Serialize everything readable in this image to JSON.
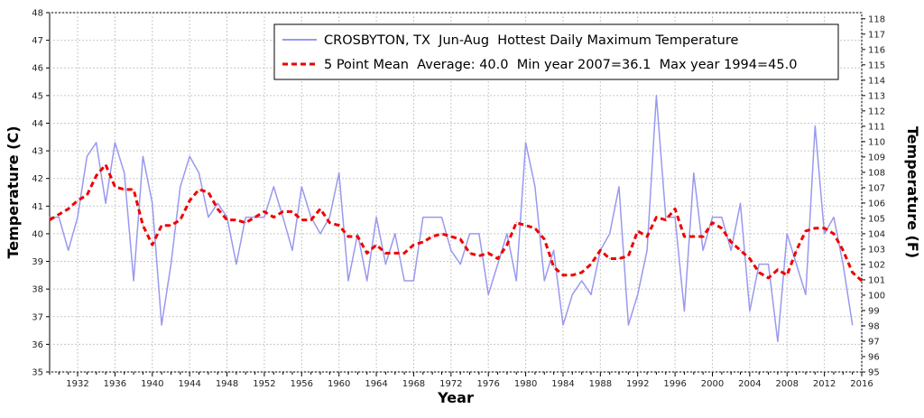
{
  "chart_data": {
    "type": "line",
    "title": "",
    "xlabel": "Year",
    "ylabel_left": "Temperature (C)",
    "ylabel_right": "Temperature (F)",
    "xlim": [
      1929,
      2016
    ],
    "ylim": [
      35,
      48
    ],
    "ylim_f": [
      95,
      118.4
    ],
    "grid": true,
    "legend_position": "top-right",
    "x_ticks": [
      1932,
      1936,
      1940,
      1944,
      1948,
      1952,
      1956,
      1960,
      1964,
      1968,
      1972,
      1976,
      1980,
      1984,
      1988,
      1992,
      1996,
      2000,
      2004,
      2008,
      2012,
      2016
    ],
    "y_ticks": [
      35,
      36,
      37,
      38,
      39,
      40,
      41,
      42,
      43,
      44,
      45,
      46,
      47,
      48
    ],
    "y_ticks_f": [
      95,
      96,
      97,
      98,
      99,
      100,
      101,
      102,
      103,
      104,
      105,
      106,
      107,
      108,
      109,
      110,
      111,
      112,
      113,
      114,
      115,
      116,
      117,
      118
    ],
    "series": [
      {
        "name": "CROSBYTON, TX  Jun-Aug  Hottest Daily Maximum Temperature",
        "color": "#9999ee",
        "style": "solid",
        "x": [
          1929,
          1930,
          1931,
          1932,
          1933,
          1934,
          1935,
          1936,
          1937,
          1938,
          1939,
          1940,
          1941,
          1942,
          1943,
          1944,
          1945,
          1946,
          1947,
          1948,
          1949,
          1950,
          1951,
          1952,
          1953,
          1954,
          1955,
          1956,
          1957,
          1958,
          1959,
          1960,
          1961,
          1962,
          1963,
          1964,
          1965,
          1966,
          1967,
          1968,
          1969,
          1970,
          1971,
          1972,
          1973,
          1974,
          1975,
          1976,
          1977,
          1978,
          1979,
          1980,
          1981,
          1982,
          1983,
          1984,
          1985,
          1986,
          1987,
          1988,
          1989,
          1990,
          1991,
          1992,
          1993,
          1994,
          1995,
          1996,
          1997,
          1998,
          1999,
          2000,
          2001,
          2002,
          2003,
          2004,
          2005,
          2006,
          2007,
          2008,
          2009,
          2010,
          2011,
          2012,
          2013,
          2014,
          2015
        ],
        "values": [
          40.6,
          40.6,
          39.4,
          40.6,
          42.8,
          43.3,
          41.1,
          43.3,
          42.2,
          38.3,
          42.8,
          41.1,
          36.7,
          38.9,
          41.7,
          42.8,
          42.2,
          40.6,
          41.1,
          40.6,
          38.9,
          40.6,
          40.6,
          40.6,
          41.7,
          40.6,
          39.4,
          41.7,
          40.6,
          40.0,
          40.6,
          42.2,
          38.3,
          40.0,
          38.3,
          40.6,
          38.9,
          40.0,
          38.3,
          38.3,
          40.6,
          40.6,
          40.6,
          39.4,
          38.9,
          40.0,
          40.0,
          37.8,
          38.9,
          40.0,
          38.3,
          43.3,
          41.7,
          38.3,
          39.4,
          36.7,
          37.8,
          38.3,
          37.8,
          39.4,
          40.0,
          41.7,
          36.7,
          37.8,
          39.4,
          45.0,
          40.6,
          40.6,
          37.2,
          42.2,
          39.4,
          40.6,
          40.6,
          39.4,
          41.1,
          37.2,
          38.9,
          38.9,
          36.1,
          40.0,
          38.9,
          37.8,
          43.9,
          40.0,
          40.6,
          38.9,
          36.7
        ]
      },
      {
        "name": "5 Point Mean  Average: 40.0  Min year 2007=36.1  Max year 1994=45.0",
        "color": "#ee0000",
        "style": "dashed",
        "x": [
          1929,
          1930,
          1931,
          1932,
          1933,
          1934,
          1935,
          1936,
          1937,
          1938,
          1939,
          1940,
          1941,
          1942,
          1943,
          1944,
          1945,
          1946,
          1947,
          1948,
          1949,
          1950,
          1951,
          1952,
          1953,
          1954,
          1955,
          1956,
          1957,
          1958,
          1959,
          1960,
          1961,
          1962,
          1963,
          1964,
          1965,
          1966,
          1967,
          1968,
          1969,
          1970,
          1971,
          1972,
          1973,
          1974,
          1975,
          1976,
          1977,
          1978,
          1979,
          1980,
          1981,
          1982,
          1983,
          1984,
          1985,
          1986,
          1987,
          1988,
          1989,
          1990,
          1991,
          1992,
          1993,
          1994,
          1995,
          1996,
          1997,
          1998,
          1999,
          2000,
          2001,
          2002,
          2003,
          2004,
          2005,
          2006,
          2007,
          2008,
          2009,
          2010,
          2011,
          2012,
          2013,
          2014,
          2015,
          2016
        ],
        "values": [
          40.5,
          40.7,
          40.9,
          41.2,
          41.4,
          42.1,
          42.5,
          41.7,
          41.6,
          41.6,
          40.3,
          39.6,
          40.3,
          40.3,
          40.5,
          41.2,
          41.6,
          41.5,
          40.9,
          40.5,
          40.5,
          40.4,
          40.6,
          40.8,
          40.6,
          40.8,
          40.8,
          40.5,
          40.5,
          40.9,
          40.4,
          40.3,
          39.9,
          39.9,
          39.3,
          39.6,
          39.3,
          39.3,
          39.3,
          39.6,
          39.7,
          39.9,
          40.0,
          39.9,
          39.8,
          39.3,
          39.2,
          39.3,
          39.1,
          39.6,
          40.4,
          40.3,
          40.2,
          39.8,
          38.8,
          38.5,
          38.5,
          38.6,
          38.9,
          39.4,
          39.1,
          39.1,
          39.2,
          40.1,
          39.9,
          40.6,
          40.5,
          40.9,
          39.9,
          39.9,
          39.9,
          40.4,
          40.2,
          39.7,
          39.4,
          39.1,
          38.6,
          38.4,
          38.7,
          38.5,
          39.4,
          40.1,
          40.2,
          40.2,
          40.0,
          39.4,
          38.6,
          38.3
        ]
      }
    ]
  }
}
